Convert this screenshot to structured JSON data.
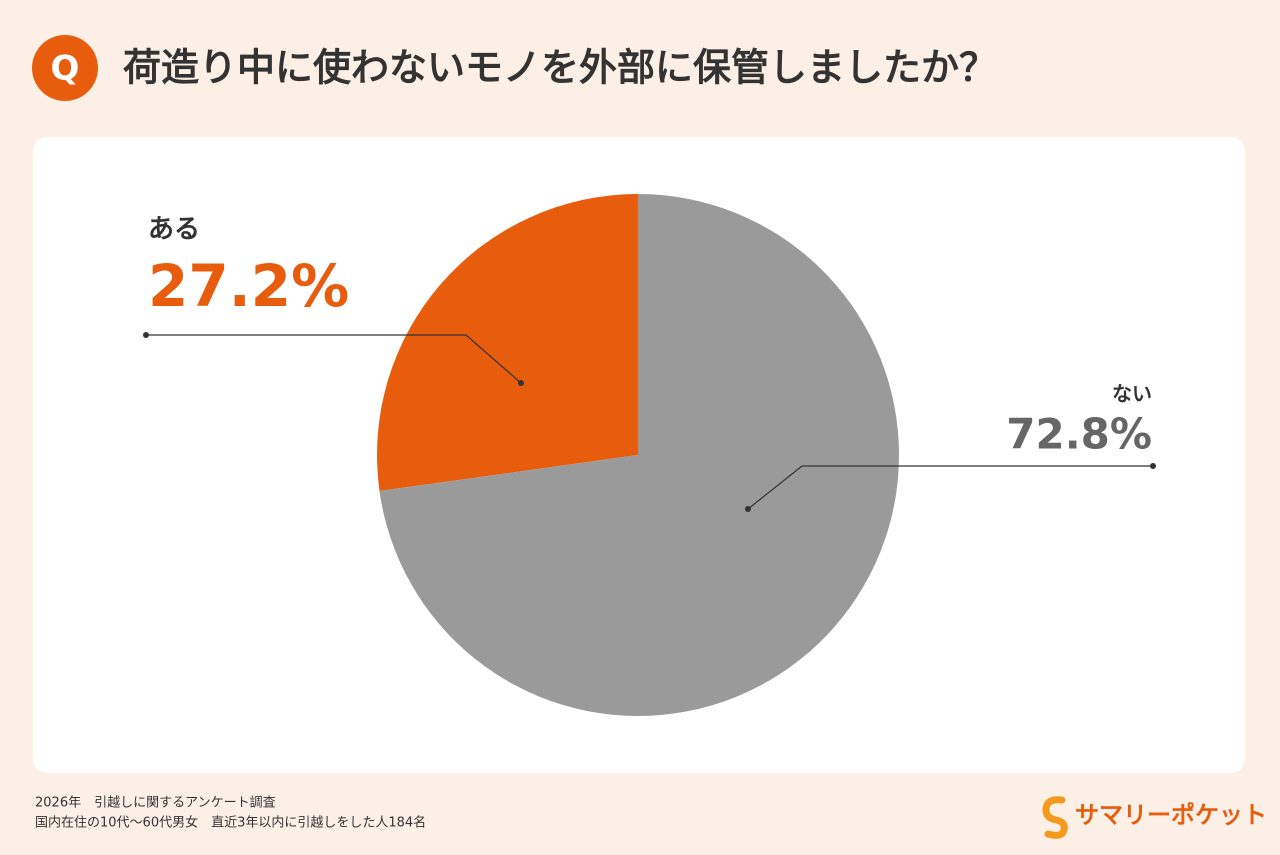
{
  "header": {
    "icon": "Q"
  },
  "chart_data": {
    "type": "pie",
    "title": "荷造り中に使わないモノを外部に保管しましたか？",
    "categories": [
      "ある",
      "ない"
    ],
    "values": [
      27.2,
      72.8
    ],
    "value_labels": [
      "27.2%",
      "72.8%"
    ],
    "colors": [
      "#e85c0d",
      "#9a9a9a"
    ]
  },
  "footer": {
    "notes": [
      "2026年　引越しに関するアンケート調査",
      "国内在住の10代〜60代男女　直近3年以内に引越しをした人184名"
    ],
    "logo": "サマリーポケット"
  }
}
